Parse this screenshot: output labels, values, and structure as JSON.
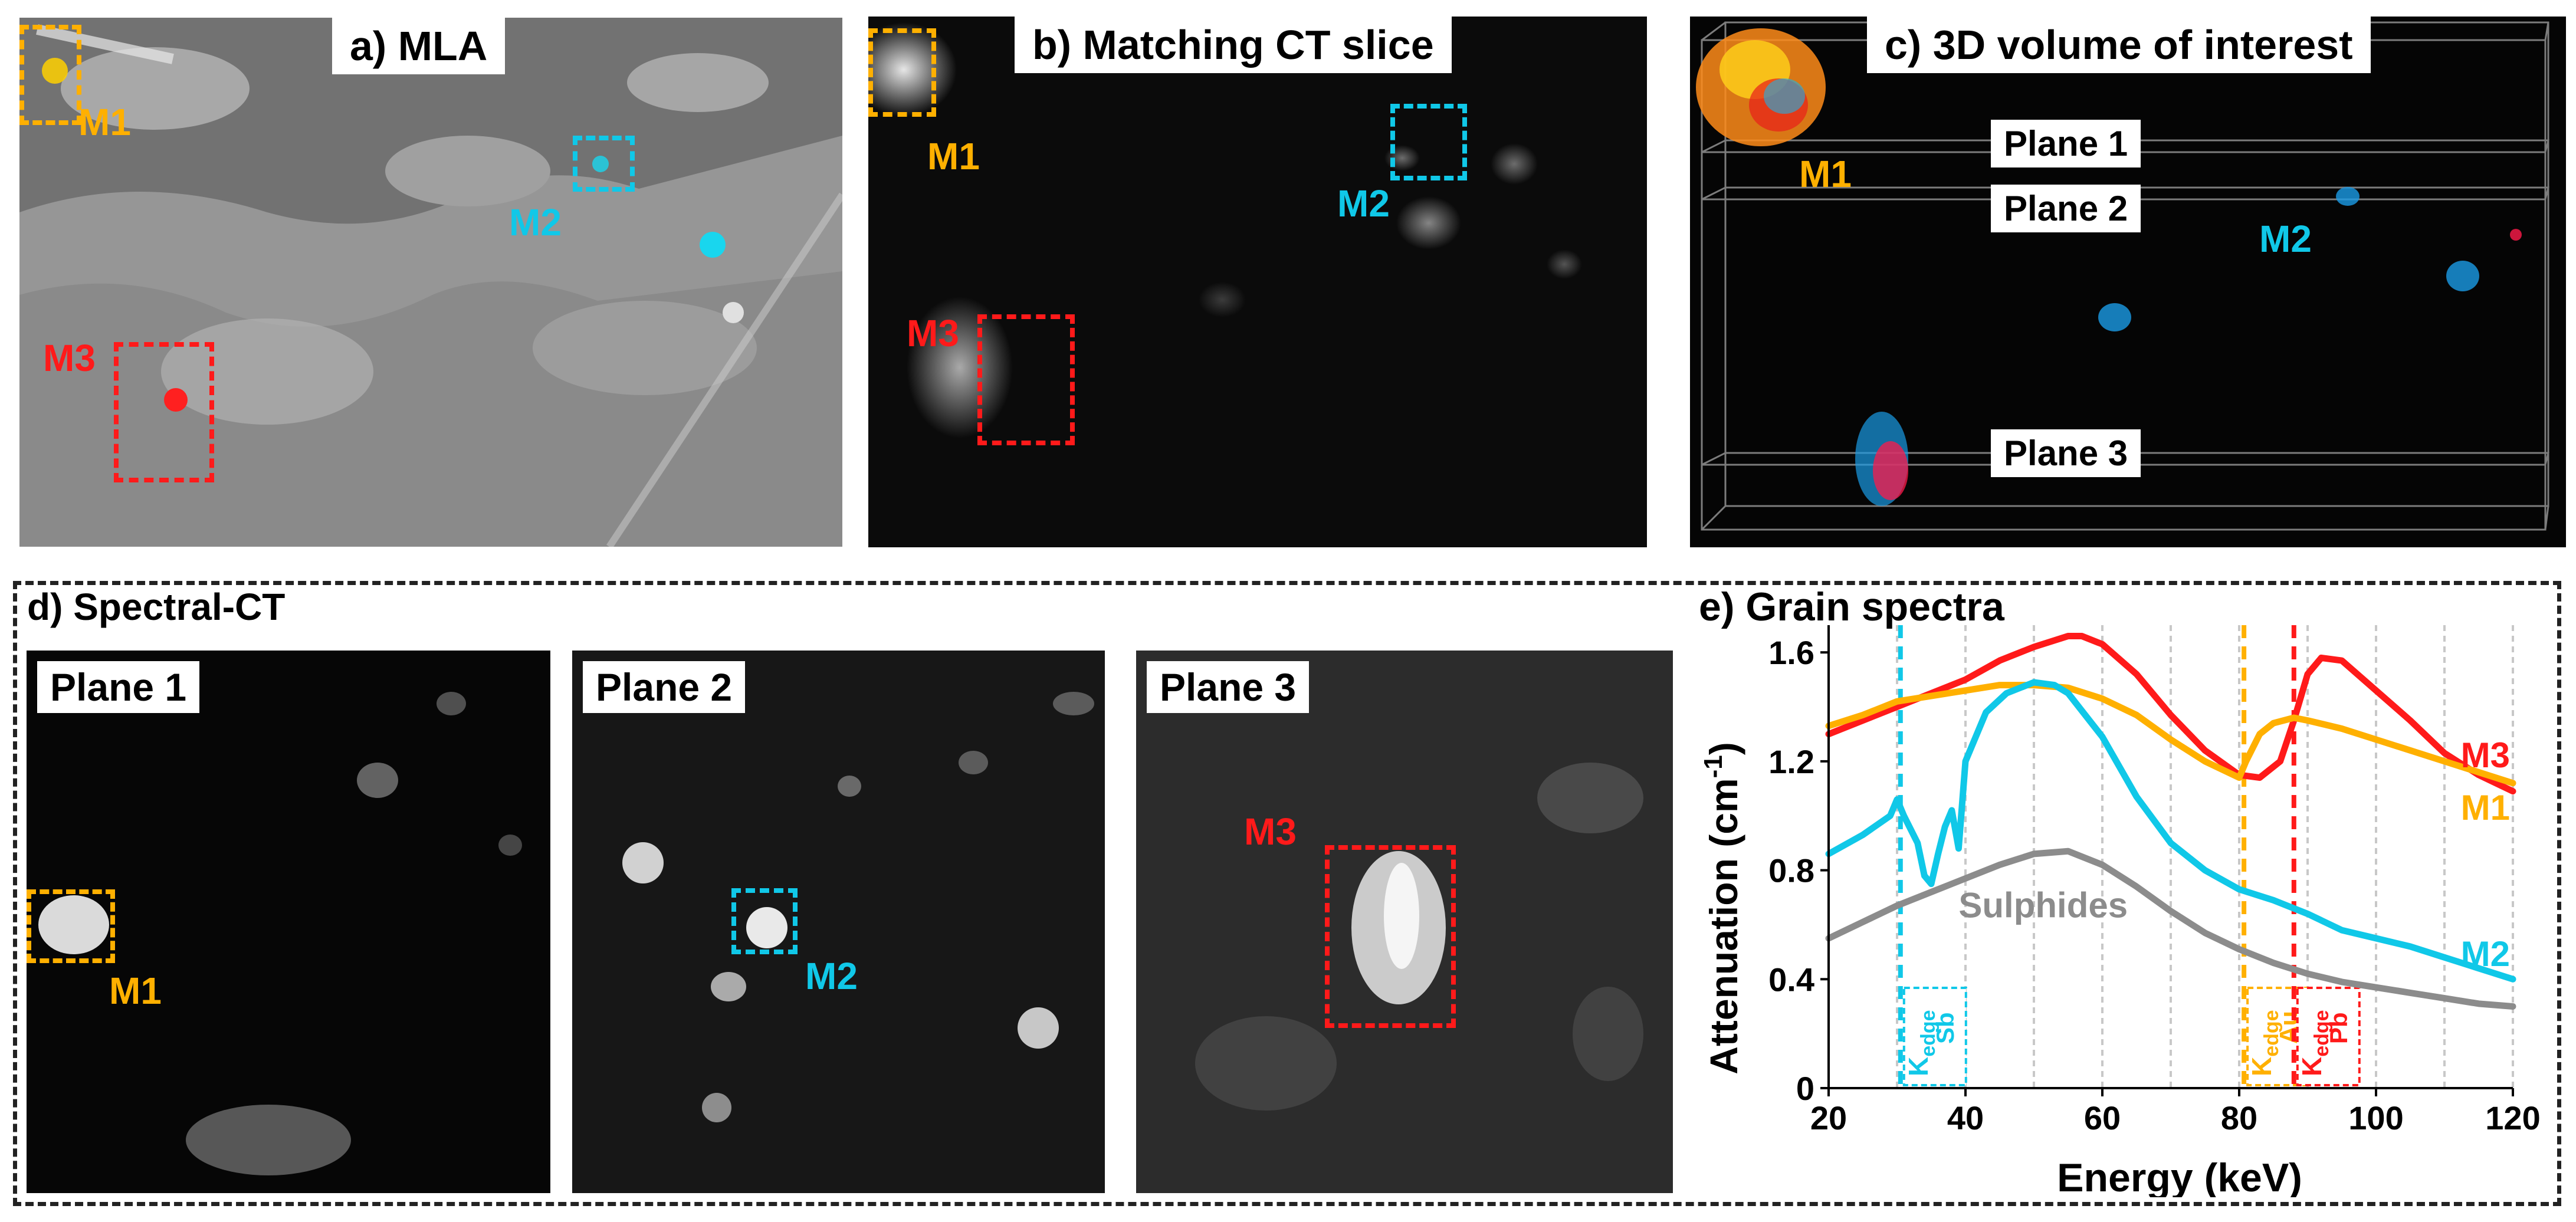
{
  "panels": {
    "a": {
      "title": "a) MLA",
      "markers": {
        "m1": "M1",
        "m2": "M2",
        "m3": "M3"
      }
    },
    "b": {
      "title": "b) Matching CT slice",
      "markers": {
        "m1": "M1",
        "m2": "M2",
        "m3": "M3"
      }
    },
    "c": {
      "title": "c) 3D volume of interest",
      "planes": [
        "Plane 1",
        "Plane 2",
        "Plane 3"
      ],
      "markers": {
        "m1": "M1",
        "m2": "M2"
      }
    },
    "d": {
      "title": "d) Spectral-CT",
      "sub": [
        {
          "label": "Plane 1",
          "marker": "M1"
        },
        {
          "label": "Plane 2",
          "marker": "M2"
        },
        {
          "label": "Plane 3",
          "marker": "M3"
        }
      ]
    },
    "e": {
      "title": "e) Grain spectra"
    }
  },
  "colors": {
    "M1": "#FFB000",
    "M2": "#10C8E8",
    "M3": "#FF1A1A",
    "Sulphides": "#8C8C8C"
  },
  "chart_data": {
    "type": "line",
    "title": "e) Grain spectra",
    "xlabel": "Energy (keV)",
    "ylabel_main": "Attenuation (cm",
    "ylabel_sup": "-1",
    "ylabel_end": ")",
    "xlim": [
      20,
      120
    ],
    "ylim": [
      0,
      1.7
    ],
    "xticks": [
      20,
      40,
      60,
      80,
      100,
      120
    ],
    "yticks": [
      0,
      0.4,
      0.8,
      1.2,
      1.6
    ],
    "ytick_labels": [
      "0",
      "0.4",
      "0.8",
      "1.2",
      "1.6"
    ],
    "grid": "vertical dashed at 10 keV steps",
    "series": [
      {
        "name": "M3",
        "color": "#FF1A1A",
        "x": [
          20,
          25,
          30,
          35,
          40,
          45,
          50,
          55,
          57,
          60,
          65,
          70,
          75,
          80,
          83,
          86,
          88,
          90,
          92,
          95,
          100,
          105,
          110,
          115,
          120
        ],
        "y": [
          1.3,
          1.35,
          1.4,
          1.45,
          1.5,
          1.57,
          1.62,
          1.66,
          1.66,
          1.63,
          1.52,
          1.37,
          1.24,
          1.15,
          1.14,
          1.2,
          1.35,
          1.52,
          1.58,
          1.57,
          1.46,
          1.35,
          1.23,
          1.15,
          1.09
        ]
      },
      {
        "name": "M1",
        "color": "#FFB000",
        "x": [
          20,
          25,
          30,
          35,
          40,
          45,
          50,
          55,
          60,
          65,
          70,
          75,
          80,
          81,
          83,
          85,
          88,
          90,
          95,
          100,
          105,
          110,
          115,
          120
        ],
        "y": [
          1.33,
          1.37,
          1.42,
          1.44,
          1.46,
          1.48,
          1.48,
          1.47,
          1.43,
          1.37,
          1.28,
          1.2,
          1.14,
          1.2,
          1.3,
          1.34,
          1.36,
          1.35,
          1.32,
          1.28,
          1.24,
          1.2,
          1.16,
          1.12
        ]
      },
      {
        "name": "M2",
        "color": "#10C8E8",
        "x": [
          20,
          25,
          29,
          30,
          31,
          33,
          34,
          35,
          36,
          37,
          38,
          39,
          40,
          43,
          46,
          50,
          53,
          55,
          60,
          65,
          70,
          75,
          80,
          85,
          90,
          95,
          100,
          105,
          110,
          115,
          120
        ],
        "y": [
          0.86,
          0.93,
          1.0,
          1.06,
          1.0,
          0.9,
          0.78,
          0.75,
          0.86,
          0.96,
          1.02,
          0.88,
          1.2,
          1.38,
          1.45,
          1.49,
          1.48,
          1.45,
          1.29,
          1.07,
          0.9,
          0.8,
          0.73,
          0.69,
          0.64,
          0.58,
          0.55,
          0.52,
          0.48,
          0.44,
          0.4
        ]
      },
      {
        "name": "Sulphides",
        "color": "#8C8C8C",
        "x": [
          20,
          25,
          30,
          35,
          40,
          45,
          50,
          55,
          60,
          65,
          70,
          75,
          80,
          85,
          90,
          95,
          100,
          105,
          110,
          115,
          120
        ],
        "y": [
          0.55,
          0.61,
          0.67,
          0.72,
          0.77,
          0.82,
          0.86,
          0.87,
          0.82,
          0.74,
          0.65,
          0.57,
          0.51,
          0.46,
          0.42,
          0.39,
          0.37,
          0.35,
          0.33,
          0.31,
          0.3
        ]
      }
    ],
    "series_labels": {
      "M3": "M3",
      "M1": "M1",
      "M2": "M2",
      "Sulphides": "Sulphides"
    },
    "edges": [
      {
        "element": "Sb",
        "sub": "edge",
        "letter": "K",
        "energy": 30.5,
        "color": "#10C8E8"
      },
      {
        "element": "Au",
        "sub": "edge",
        "letter": "K",
        "energy": 80.7,
        "color": "#FFB000"
      },
      {
        "element": "Pb",
        "sub": "edge",
        "letter": "K",
        "energy": 88.0,
        "color": "#FF1A1A"
      }
    ]
  }
}
